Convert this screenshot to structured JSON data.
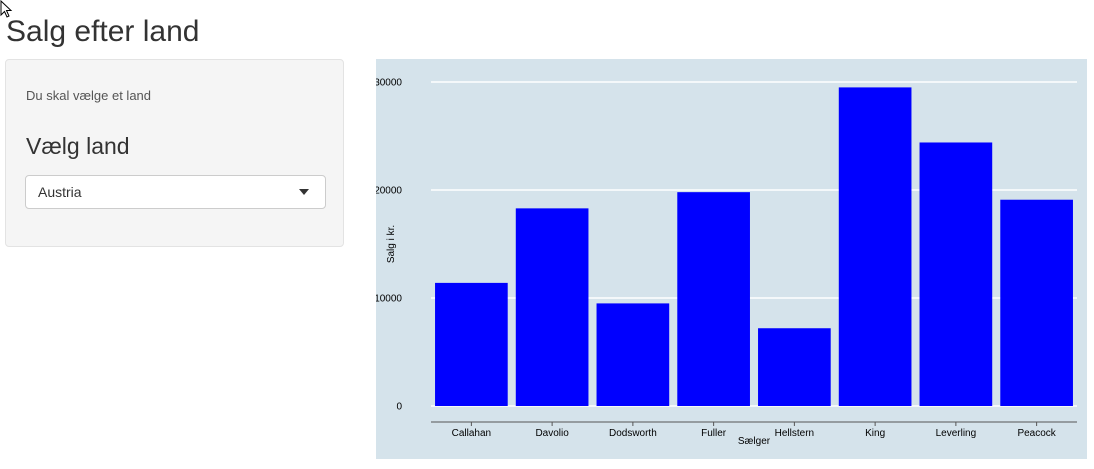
{
  "header": {
    "title": "Salg efter land"
  },
  "sidebar": {
    "help_text": "Du skal vælge et land",
    "select_label": "Vælg land",
    "selected_country": "Austria"
  },
  "colors": {
    "panel_background": "#d5e3eb",
    "bar_fill": "#0000ff",
    "gridline": "#ffffff",
    "axis_line": "#555555"
  },
  "chart_data": {
    "type": "bar",
    "categories": [
      "Callahan",
      "Davolio",
      "Dodsworth",
      "Fuller",
      "Hellstern",
      "King",
      "Leverling",
      "Peacock"
    ],
    "values": [
      11400,
      18300,
      9500,
      19800,
      7200,
      29500,
      24400,
      19100
    ],
    "xlabel": "Sælger",
    "ylabel": "Salg i kr.",
    "ylim": [
      0,
      30000
    ],
    "yticks": [
      0,
      10000,
      20000,
      30000
    ],
    "grid": true
  }
}
